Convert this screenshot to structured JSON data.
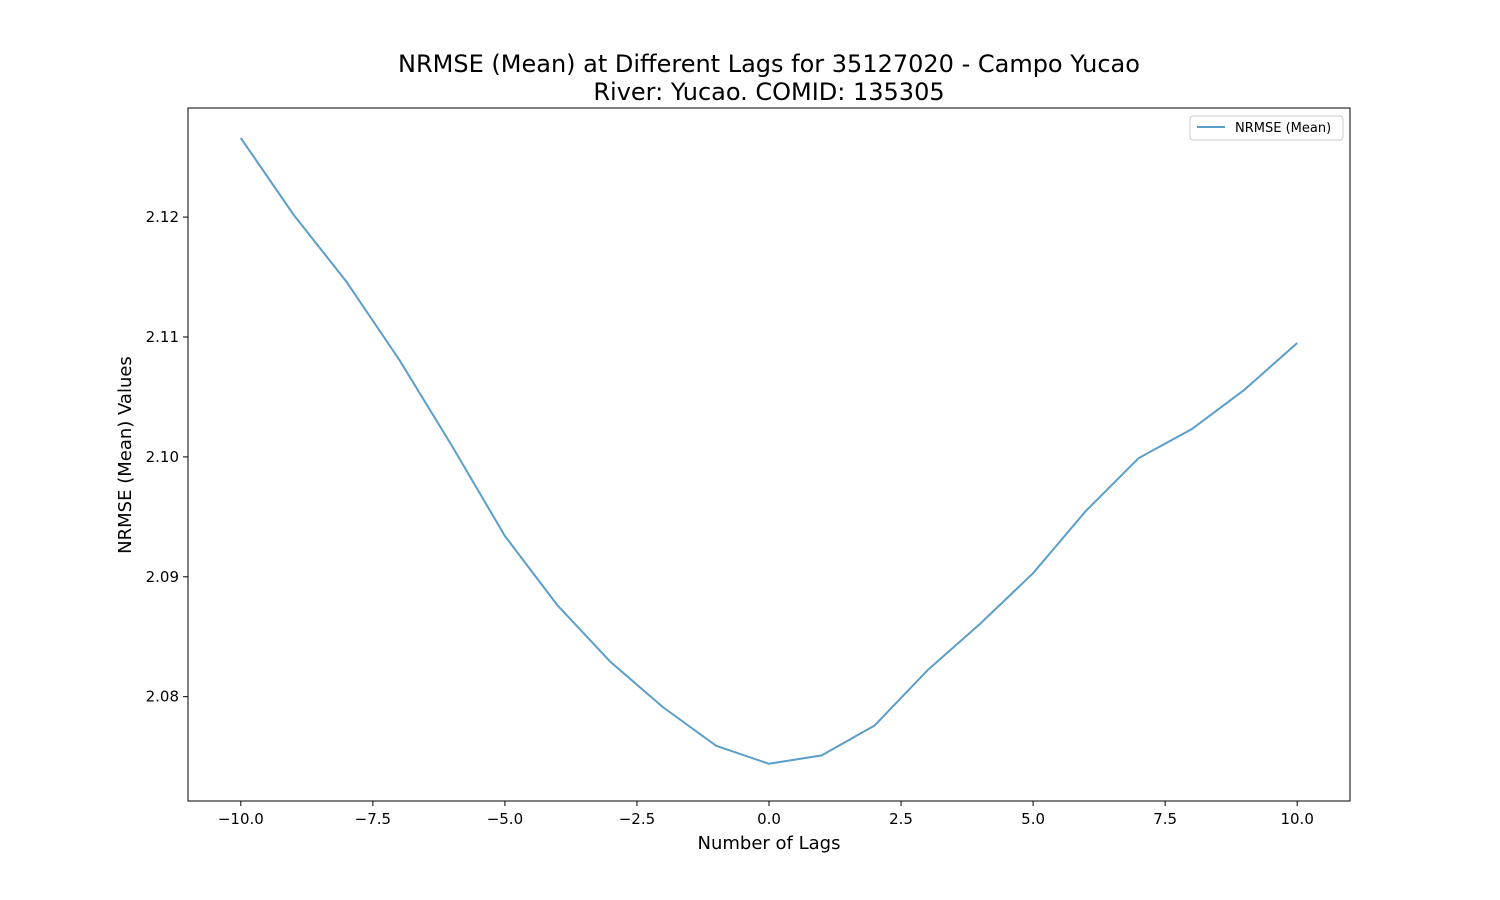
{
  "chart_data": {
    "type": "line",
    "title": "NRMSE (Mean) at Different Lags for 35127020 - Campo Yucao",
    "subtitle": "River: Yucao. COMID: 135305",
    "xlabel": "Number of Lags",
    "ylabel": "NRMSE (Mean) Values",
    "xlim": [
      -11,
      11
    ],
    "ylim": [
      2.0713,
      2.1291
    ],
    "xticks": [
      -10,
      -7.5,
      -5,
      -2.5,
      0,
      2.5,
      5,
      7.5,
      10
    ],
    "xtick_labels": [
      "−10.0",
      "−7.5",
      "−5.0",
      "−2.5",
      "0.0",
      "2.5",
      "5.0",
      "7.5",
      "10.0"
    ],
    "yticks": [
      2.08,
      2.09,
      2.1,
      2.11,
      2.12
    ],
    "ytick_labels": [
      "2.08",
      "2.09",
      "2.10",
      "2.11",
      "2.12"
    ],
    "grid": false,
    "legend_position": "top-right",
    "series": [
      {
        "name": "NRMSE (Mean)",
        "color": "#5b9ec9",
        "x": [
          -10,
          -9,
          -8,
          -7,
          -6,
          -5,
          -4,
          -3,
          -2,
          -1,
          0,
          1,
          2,
          3,
          4,
          5,
          6,
          7,
          8,
          9,
          10
        ],
        "y": [
          2.1266,
          2.1202,
          2.1146,
          2.1081,
          2.1009,
          2.0934,
          2.0876,
          2.0829,
          2.0791,
          2.0759,
          2.0744,
          2.0751,
          2.0776,
          2.0822,
          2.0861,
          2.0903,
          2.0955,
          2.0999,
          2.1023,
          2.1056,
          2.1095
        ]
      }
    ]
  }
}
